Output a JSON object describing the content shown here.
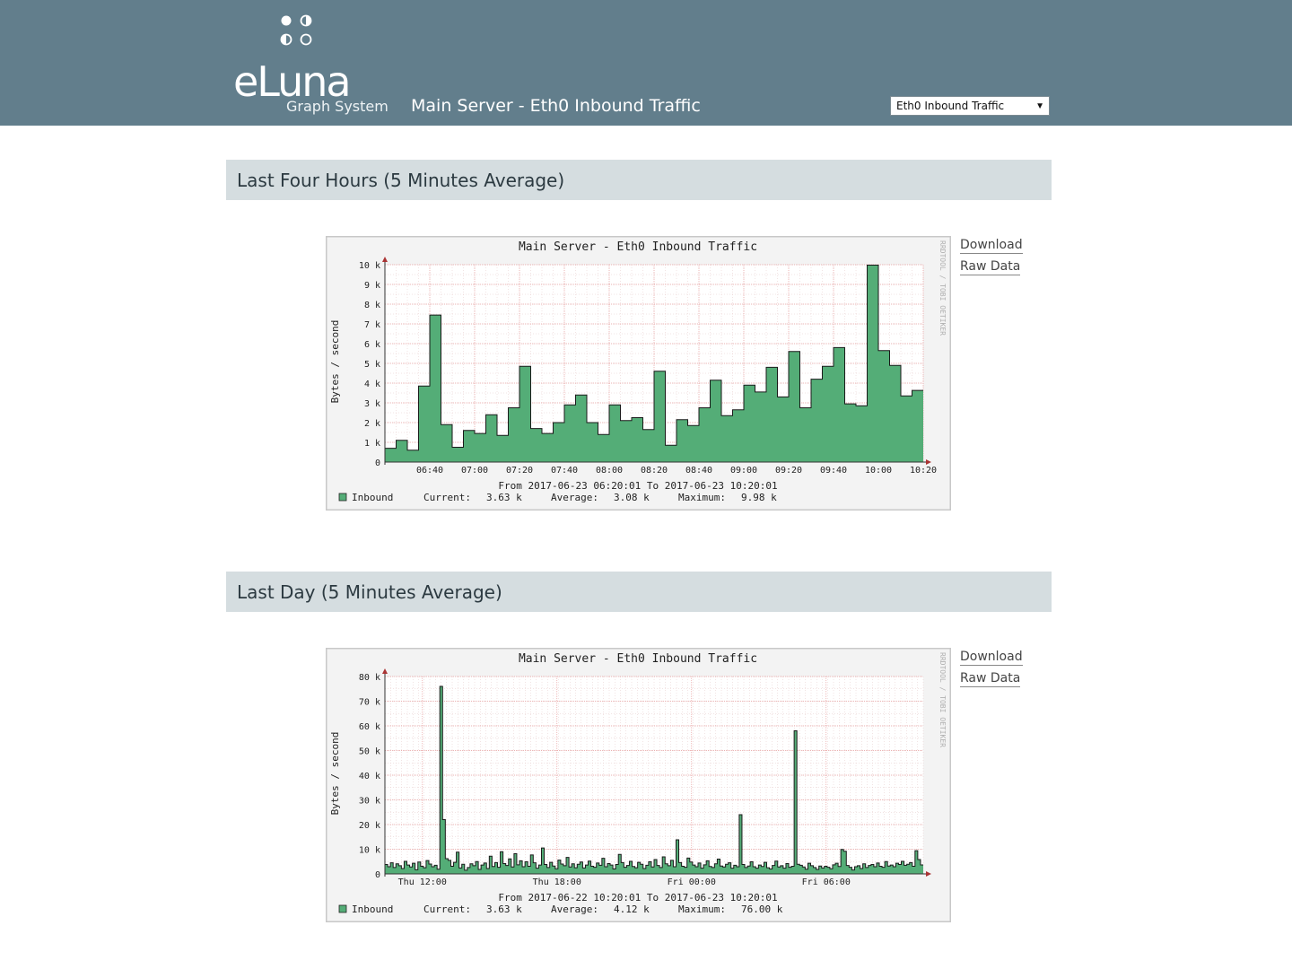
{
  "header": {
    "brand": "eLuna",
    "brand_sub": "Graph System",
    "title": "Main Server - Eth0 Inbound Traffic",
    "select": {
      "value": "Eth0 Inbound Traffic"
    }
  },
  "colors": {
    "header_bg": "#627e8c",
    "section_bg": "#d5dde0",
    "series": "#54ad77",
    "grid_major": "#e8a0a0",
    "grid_minor": "#e6c8c8"
  },
  "sections": [
    {
      "heading": "Last Four Hours (5 Minutes Average)",
      "links": {
        "download": "Download",
        "raw": "Raw Data"
      }
    },
    {
      "heading": "Last Day (5 Minutes Average)",
      "links": {
        "download": "Download",
        "raw": "Raw Data"
      }
    }
  ],
  "chart_data": [
    {
      "type": "area",
      "title": "Main Server - Eth0 Inbound Traffic",
      "ylabel": "Bytes / second",
      "watermark": "RRDTOOL / TOBI OETIKER",
      "ylim": [
        0,
        10000
      ],
      "y_ticks": [
        {
          "v": 0,
          "label": "0"
        },
        {
          "v": 1000,
          "label": "1 k"
        },
        {
          "v": 2000,
          "label": "2 k"
        },
        {
          "v": 3000,
          "label": "3 k"
        },
        {
          "v": 4000,
          "label": "4 k"
        },
        {
          "v": 5000,
          "label": "5 k"
        },
        {
          "v": 6000,
          "label": "6 k"
        },
        {
          "v": 7000,
          "label": "7 k"
        },
        {
          "v": 8000,
          "label": "8 k"
        },
        {
          "v": 9000,
          "label": "9 k"
        },
        {
          "v": 10000,
          "label": "10 k"
        }
      ],
      "x_ticks": [
        "06:40",
        "07:00",
        "07:20",
        "07:40",
        "08:00",
        "08:20",
        "08:40",
        "09:00",
        "09:20",
        "09:40",
        "10:00",
        "10:20"
      ],
      "period": "From 2017-06-23 06:20:01 To 2017-06-23 10:20:01",
      "legend": {
        "name": "Inbound",
        "current_label": "Current:",
        "current": "3.63 k",
        "average_label": "Average:",
        "average": "3.08 k",
        "maximum_label": "Maximum:",
        "maximum": "9.98 k"
      },
      "values": [
        700,
        1100,
        600,
        3850,
        7450,
        1900,
        750,
        1600,
        1450,
        2400,
        1350,
        2750,
        4850,
        1700,
        1450,
        2000,
        2900,
        3400,
        2000,
        1400,
        2900,
        2100,
        2250,
        1650,
        4600,
        850,
        2150,
        1850,
        2750,
        4150,
        2350,
        2650,
        3900,
        3550,
        4800,
        3300,
        5600,
        2750,
        4200,
        4850,
        5800,
        2950,
        2850,
        9980,
        5650,
        4900,
        3350,
        3630
      ]
    },
    {
      "type": "area",
      "title": "Main Server - Eth0 Inbound Traffic",
      "ylabel": "Bytes / second",
      "watermark": "RRDTOOL / TOBI OETIKER",
      "ylim": [
        0,
        80000
      ],
      "y_ticks": [
        {
          "v": 0,
          "label": "0"
        },
        {
          "v": 10000,
          "label": "10 k"
        },
        {
          "v": 20000,
          "label": "20 k"
        },
        {
          "v": 30000,
          "label": "30 k"
        },
        {
          "v": 40000,
          "label": "40 k"
        },
        {
          "v": 50000,
          "label": "50 k"
        },
        {
          "v": 60000,
          "label": "60 k"
        },
        {
          "v": 70000,
          "label": "70 k"
        },
        {
          "v": 80000,
          "label": "80 k"
        }
      ],
      "x_ticks": [
        "Thu 12:00",
        "Thu 18:00",
        "Fri 00:00",
        "Fri 06:00"
      ],
      "period": "From 2017-06-22 10:20:01 To 2017-06-23 10:20:01",
      "legend": {
        "name": "Inbound",
        "current_label": "Current:",
        "current": "3.63 k",
        "average_label": "Average:",
        "average": "4.12 k",
        "maximum_label": "Maximum:",
        "maximum": "76.00 k"
      },
      "values": [
        3800,
        2900,
        4500,
        2600,
        4100,
        3300,
        2200,
        5100,
        3600,
        2800,
        4300,
        1700,
        4800,
        3100,
        2500,
        5400,
        4000,
        2900,
        3500,
        1900,
        76000,
        22000,
        6200,
        5500,
        3100,
        4700,
        8800,
        2400,
        3900,
        1500,
        2600,
        4100,
        3300,
        5000,
        1800,
        3600,
        4400,
        2200,
        7200,
        3000,
        4600,
        2700,
        9000,
        4200,
        3400,
        6100,
        2800,
        8200,
        3700,
        5300,
        2900,
        4900,
        3100,
        7700,
        4500,
        2300,
        3600,
        10500,
        3800,
        2600,
        4700,
        3200,
        2100,
        5600,
        4000,
        3300,
        6700,
        2800,
        4100,
        2500,
        3900,
        4800,
        2400,
        3600,
        5200,
        3100,
        2700,
        4400,
        3500,
        6300,
        2900,
        4200,
        3600,
        2000,
        3800,
        7900,
        4600,
        2700,
        3400,
        5100,
        3000,
        2500,
        4700,
        3900,
        2200,
        3500,
        4900,
        2800,
        5800,
        3400,
        2600,
        6900,
        4100,
        3300,
        5500,
        2900,
        13800,
        4600,
        3100,
        2700,
        6400,
        4800,
        3600,
        2900,
        4400,
        2300,
        3700,
        5300,
        3000,
        2600,
        4100,
        6000,
        3200,
        2800,
        3900,
        4500,
        2300,
        3500,
        2900,
        24000,
        3800,
        2600,
        3200,
        4900,
        2900,
        2300,
        3600,
        3000,
        4700,
        2500,
        2000,
        3400,
        5200,
        2800,
        3300,
        2300,
        4200,
        2700,
        3100,
        58000,
        3900,
        3500,
        2800,
        1900,
        4300,
        3300,
        2600,
        1800,
        3200,
        2400,
        3100,
        2700,
        2100,
        3700,
        4300,
        3000,
        9900,
        9200,
        3400,
        2700,
        1600,
        2900,
        3300,
        2200,
        4100,
        2600,
        3400,
        3800,
        2900,
        4400,
        3100,
        2700,
        5000,
        3200,
        3600,
        2900,
        4300,
        3800,
        5100,
        3500,
        3900,
        4600,
        3100,
        9400,
        5800,
        3630
      ]
    }
  ]
}
